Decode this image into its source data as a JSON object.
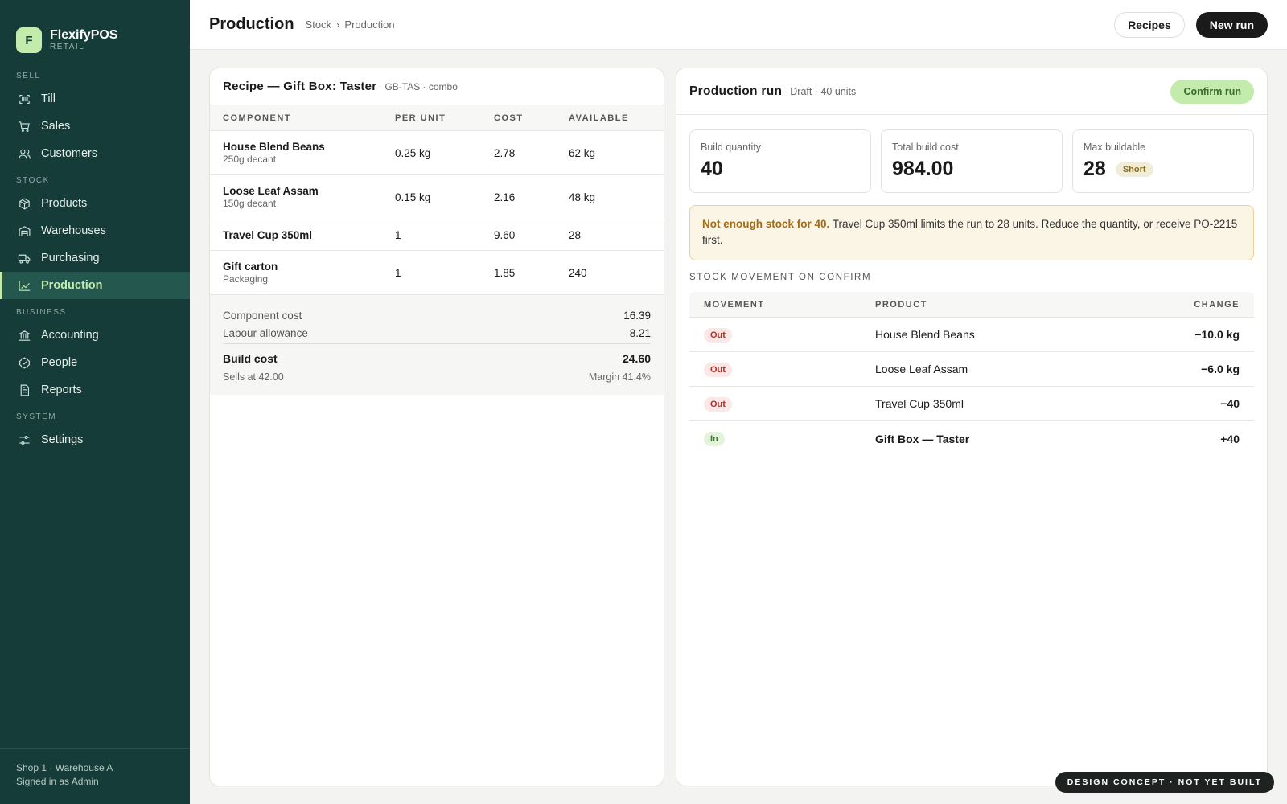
{
  "brand": {
    "logo_letter": "F",
    "name": "FlexifyPOS",
    "sub": "RETAIL"
  },
  "nav": {
    "sections": [
      {
        "label": "SELL",
        "items": [
          {
            "label": "Till",
            "icon": "scan-icon"
          },
          {
            "label": "Sales",
            "icon": "cart-icon"
          },
          {
            "label": "Customers",
            "icon": "users-icon"
          }
        ]
      },
      {
        "label": "STOCK",
        "items": [
          {
            "label": "Products",
            "icon": "box-icon"
          },
          {
            "label": "Warehouses",
            "icon": "warehouse-icon"
          },
          {
            "label": "Purchasing",
            "icon": "truck-icon"
          },
          {
            "label": "Production",
            "icon": "factory-icon",
            "active": true
          }
        ]
      },
      {
        "label": "BUSINESS",
        "items": [
          {
            "label": "Accounting",
            "icon": "bank-icon"
          },
          {
            "label": "People",
            "icon": "badge-icon"
          },
          {
            "label": "Reports",
            "icon": "report-icon"
          }
        ]
      },
      {
        "label": "SYSTEM",
        "items": [
          {
            "label": "Settings",
            "icon": "sliders-icon"
          }
        ]
      }
    ],
    "footer_line1": "Shop 1 · Warehouse A",
    "footer_line2": "Signed in as Admin"
  },
  "header": {
    "title": "Production",
    "crumb1": "Stock",
    "crumb_sep": "›",
    "crumb2": "Production",
    "recipes_label": "Recipes",
    "new_run_label": "New run"
  },
  "recipe": {
    "title": "Recipe — Gift Box: Taster",
    "meta": "GB-TAS · combo",
    "columns": [
      "COMPONENT",
      "PER UNIT",
      "COST",
      "AVAILABLE"
    ],
    "rows": [
      {
        "name": "House Blend Beans",
        "sub": "250g decant",
        "per_unit": "0.25 kg",
        "cost": "2.78",
        "available": "62 kg"
      },
      {
        "name": "Loose Leaf Assam",
        "sub": "150g decant",
        "per_unit": "0.15 kg",
        "cost": "2.16",
        "available": "48 kg"
      },
      {
        "name": "Travel Cup 350ml",
        "sub": "",
        "per_unit": "1",
        "cost": "9.60",
        "available": "28"
      },
      {
        "name": "Gift carton",
        "sub": "Packaging",
        "per_unit": "1",
        "cost": "1.85",
        "available": "240"
      }
    ],
    "component_cost_label": "Component cost",
    "component_cost": "16.39",
    "labour_label": "Labour allowance",
    "labour": "8.21",
    "build_cost_label": "Build cost",
    "build_cost": "24.60",
    "sells_at": "Sells at 42.00",
    "margin": "Margin 41.4%"
  },
  "run": {
    "title": "Production run",
    "meta": "Draft · 40 units",
    "confirm_label": "Confirm run",
    "build_qty_label": "Build quantity",
    "build_qty": "40",
    "total_cost_label": "Total build cost",
    "total_cost": "984.00",
    "max_label": "Max buildable",
    "max": "28",
    "max_badge": "Short",
    "alert_strong": "Not enough stock for 40.",
    "alert_text": " Travel Cup 350ml limits the run to 28 units. Reduce the quantity, or receive PO-2215 first.",
    "movement_title": "STOCK MOVEMENT ON CONFIRM",
    "movement_columns": [
      "MOVEMENT",
      "PRODUCT",
      "CHANGE"
    ],
    "movements": [
      {
        "type": "Out",
        "product": "House Blend Beans",
        "change": "−10.0 kg"
      },
      {
        "type": "Out",
        "product": "Loose Leaf Assam",
        "change": "−6.0 kg"
      },
      {
        "type": "Out",
        "product": "Travel Cup 350ml",
        "change": "−40"
      },
      {
        "type": "In",
        "product": "Gift Box — Taster",
        "change": "+40"
      }
    ]
  },
  "concept_label": "DESIGN CONCEPT · NOT YET BUILT",
  "colors": {
    "sidebar": "#163c3a",
    "accent": "#c2ebac",
    "warning": "#a66b12",
    "out": "#b3322a",
    "in": "#3b7a2c"
  }
}
